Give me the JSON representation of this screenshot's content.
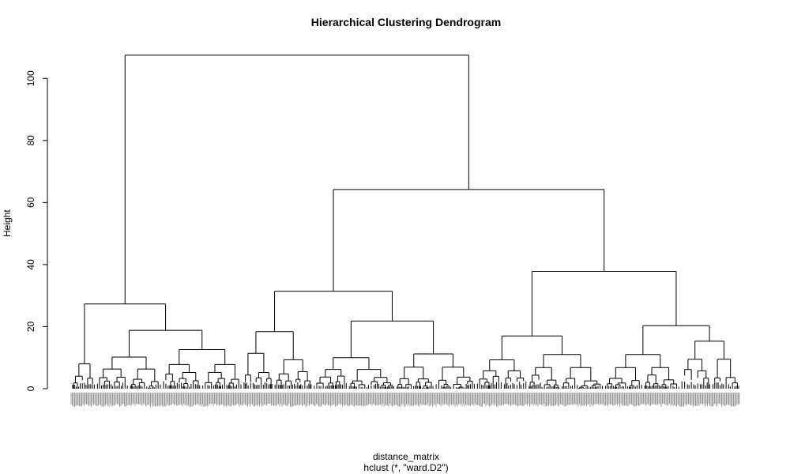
{
  "chart_data": {
    "type": "dendrogram",
    "title": "Hierarchical Clustering Dendrogram",
    "xlabel": "distance_matrix",
    "sub": "hclust (*, \"ward.D2\")",
    "ylabel": "Height",
    "ylim": [
      0,
      110
    ],
    "yticks": [
      0,
      20,
      40,
      60,
      80,
      100
    ],
    "merges": [
      {
        "height": 107.5,
        "children": [
          "A",
          "B"
        ]
      },
      {
        "height": 64.2,
        "children": [
          "B1",
          "B2"
        ],
        "id": "B"
      },
      {
        "height": 37.8,
        "children": [
          "B2a",
          "B2b"
        ],
        "id": "B2"
      },
      {
        "height": 31.4,
        "children": [
          "B1a",
          "B1b"
        ],
        "id": "B1"
      },
      {
        "height": 27.3,
        "children": [
          "A1",
          "A2"
        ],
        "id": "A"
      },
      {
        "height": 21.8,
        "children": [
          "B1b1",
          "B1b2"
        ],
        "id": "B1b"
      },
      {
        "height": 20.3,
        "children": [
          "B2b1",
          "B2b2"
        ],
        "id": "B2b"
      },
      {
        "height": 18.8,
        "children": [
          "A2a",
          "A2b"
        ],
        "id": "A2"
      },
      {
        "height": 18.4,
        "children": [
          "B1a1",
          "B1a2"
        ],
        "id": "B1a"
      },
      {
        "height": 17.0,
        "children": [
          "B2a1",
          "B2a2"
        ],
        "id": "B2a"
      },
      {
        "height": 15.3,
        "children": [
          "B2b2a",
          "B2b2b"
        ],
        "id": "B2b2"
      },
      {
        "height": 12.6,
        "children": [
          "A2b1",
          "A2b2"
        ],
        "id": "A2b"
      },
      {
        "height": 11.2,
        "children": [
          "B1b2a",
          "B1b2b"
        ],
        "id": "B1b2"
      },
      {
        "height": 11.0,
        "children": [
          "B2a2a",
          "B2a2b"
        ],
        "id": "B2a2"
      },
      {
        "height": 11.0,
        "children": [
          "B2b1a",
          "B2b1b"
        ],
        "id": "B2b1"
      },
      {
        "height": 10.2,
        "children": [
          "A2a1",
          "A2a2"
        ],
        "id": "A2a"
      },
      {
        "height": 10.0,
        "children": [
          "B1b1a",
          "B1b1b"
        ],
        "id": "B1b1"
      },
      {
        "height": 9.3,
        "children": [
          "B2a1a",
          "B2a1b"
        ],
        "id": "B2a1"
      }
    ]
  }
}
